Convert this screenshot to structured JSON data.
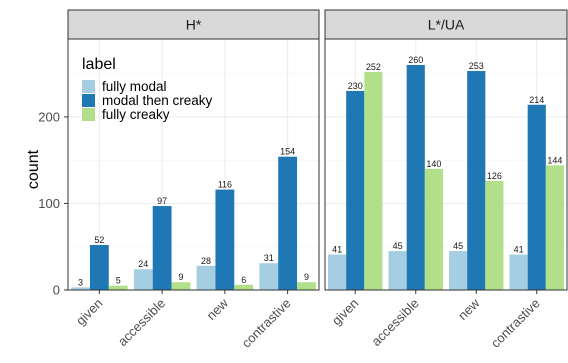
{
  "chart_data": {
    "type": "bar",
    "ylabel": "count",
    "xlabel": "",
    "ylim": [
      0,
      290
    ],
    "yticks": [
      0,
      100,
      200
    ],
    "categories": [
      "given",
      "accessible",
      "new",
      "contrastive"
    ],
    "legend": {
      "title": "label",
      "placement": "top-left",
      "entries": [
        "fully modal",
        "modal then creaky",
        "fully creaky"
      ]
    },
    "colors": {
      "fully modal": "#a6cee3",
      "modal then creaky": "#1f78b4",
      "fully creaky": "#b2df8a"
    },
    "panels": [
      {
        "title": "H*",
        "series": [
          {
            "name": "fully modal",
            "values": [
              3,
              24,
              28,
              31
            ]
          },
          {
            "name": "modal then creaky",
            "values": [
              52,
              97,
              116,
              154
            ]
          },
          {
            "name": "fully creaky",
            "values": [
              5,
              9,
              6,
              9
            ]
          }
        ]
      },
      {
        "title": "L*/UA",
        "series": [
          {
            "name": "fully modal",
            "values": [
              41,
              45,
              45,
              41
            ]
          },
          {
            "name": "modal then creaky",
            "values": [
              230,
              260,
              253,
              214
            ]
          },
          {
            "name": "fully creaky",
            "values": [
              252,
              140,
              126,
              144
            ]
          }
        ]
      }
    ]
  }
}
